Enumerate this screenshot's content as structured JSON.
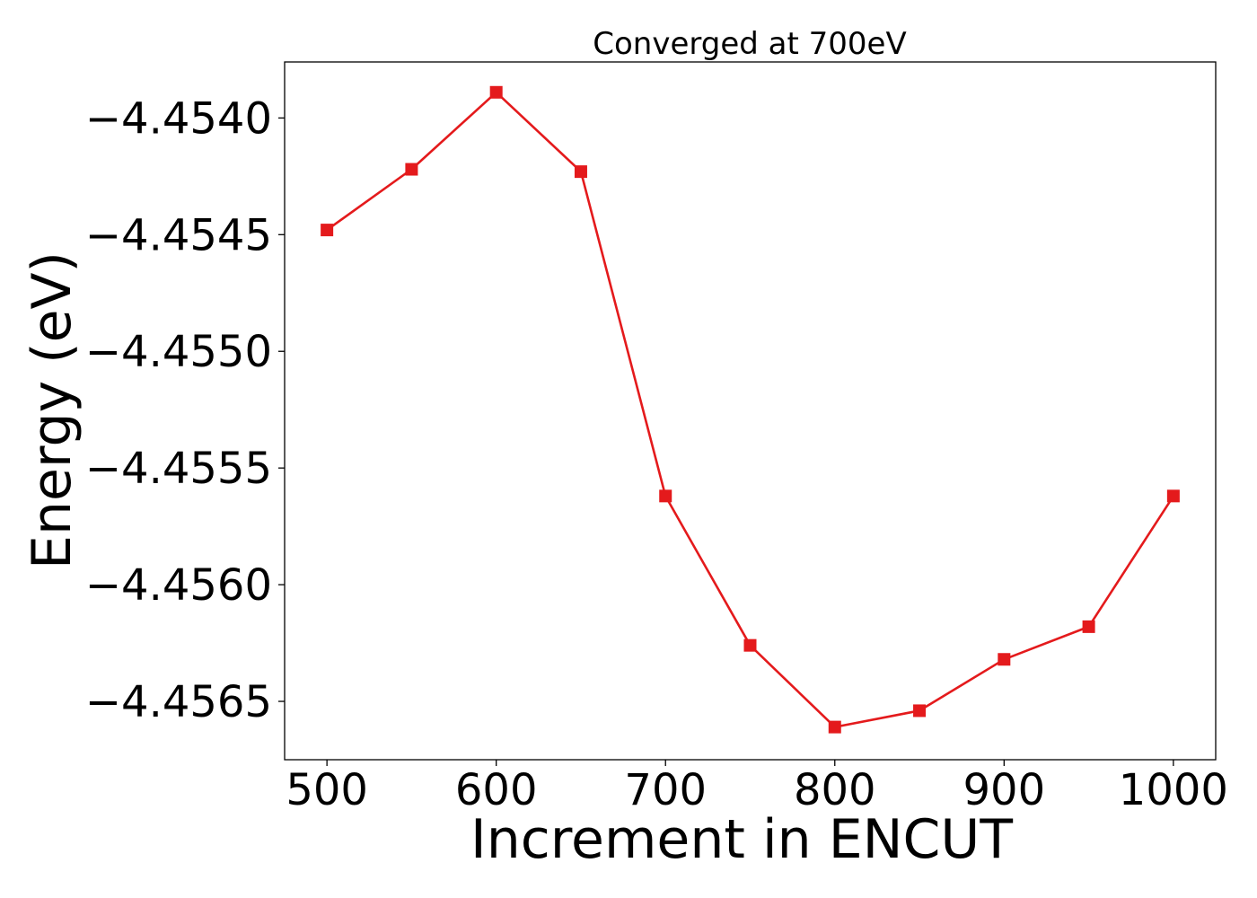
{
  "chart_data": {
    "type": "line",
    "title": "Converged at 700eV",
    "xlabel": "Increment in ENCUT",
    "ylabel": "Energy (eV)",
    "x": [
      500,
      550,
      600,
      650,
      700,
      750,
      800,
      850,
      900,
      950,
      1000
    ],
    "series": [
      {
        "values": [
          -4.45448,
          -4.45422,
          -4.45389,
          -4.45423,
          -4.45562,
          -4.45626,
          -4.45661,
          -4.45654,
          -4.45632,
          -4.45618,
          -4.45562
        ],
        "color": "#e41a1c",
        "marker": "square"
      }
    ],
    "xlim": [
      475,
      1025
    ],
    "ylim": [
      -4.45675,
      -4.45376
    ],
    "xticks": [
      500,
      600,
      700,
      800,
      900,
      1000
    ],
    "xtick_labels": [
      "500",
      "600",
      "700",
      "800",
      "900",
      "1000"
    ],
    "yticks": [
      -4.454,
      -4.4545,
      -4.455,
      -4.4555,
      -4.456,
      -4.4565
    ],
    "ytick_labels": [
      "−4.4540",
      "−4.4545",
      "−4.4550",
      "−4.4555",
      "−4.4560",
      "−4.4565"
    ],
    "grid": false,
    "legend": "none"
  }
}
